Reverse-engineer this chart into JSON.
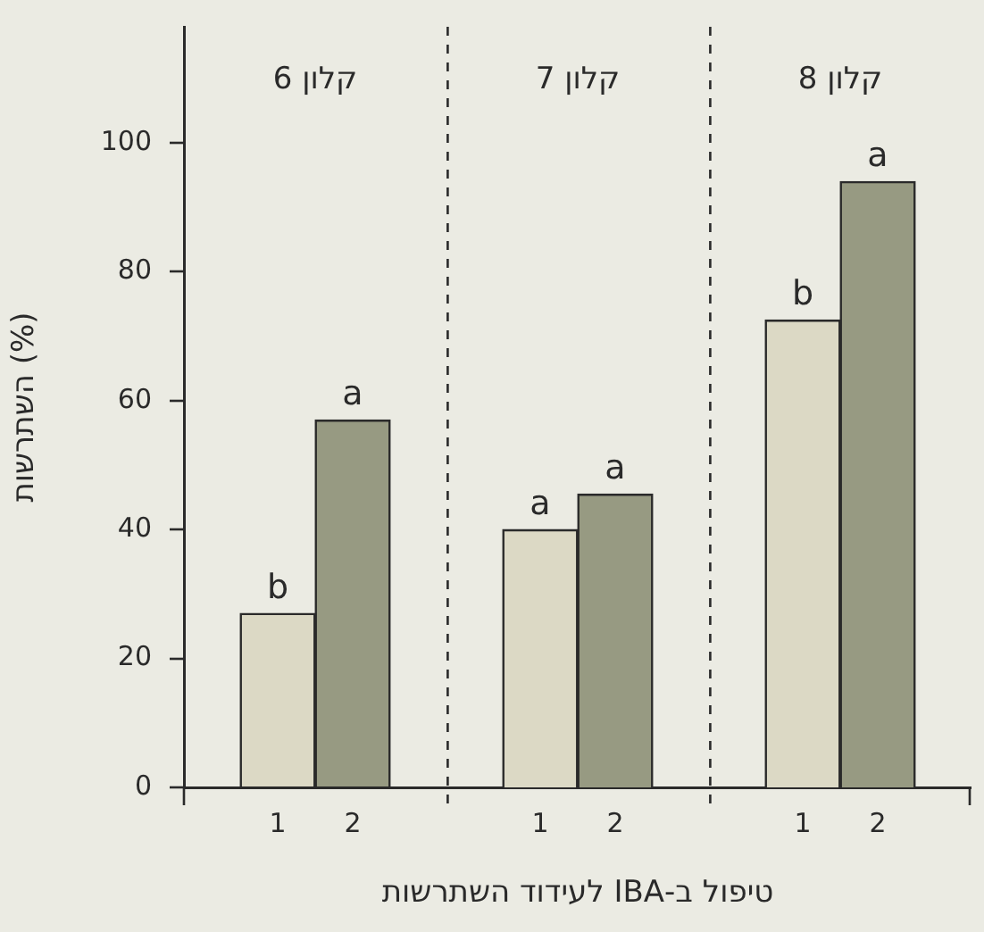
{
  "chart_data": [
    {
      "type": "bar",
      "title": "קלון 6",
      "ylabel": "השתרשות (%)",
      "categories": [
        "1",
        "2"
      ],
      "values": [
        27,
        57
      ],
      "colors": [
        "#dcd9c5",
        "#979a82"
      ],
      "value_labels": [
        "b",
        "a"
      ],
      "ylim": [
        0,
        118
      ],
      "yticks": [
        0,
        20,
        40,
        60,
        80,
        100
      ],
      "grid": false,
      "legend": false
    },
    {
      "type": "bar",
      "title": "קלון 7",
      "xlabel": "טיפול ב-IBA לעידוד השתרשות",
      "categories": [
        "1",
        "2"
      ],
      "values": [
        40,
        45.5
      ],
      "colors": [
        "#dcd9c5",
        "#979a82"
      ],
      "value_labels": [
        "a",
        "a"
      ],
      "ylim": [
        0,
        118
      ],
      "tick_labels": "x",
      "grid": false,
      "legend": false
    },
    {
      "type": "bar",
      "title": "קלון 8",
      "categories": [
        "1",
        "2"
      ],
      "values": [
        72.5,
        94
      ],
      "colors": [
        "#dcd9c5",
        "#979a82"
      ],
      "value_labels": [
        "b",
        "a"
      ],
      "ylim": [
        0,
        118
      ],
      "tick_labels": "x",
      "grid": false,
      "legend": false
    }
  ]
}
